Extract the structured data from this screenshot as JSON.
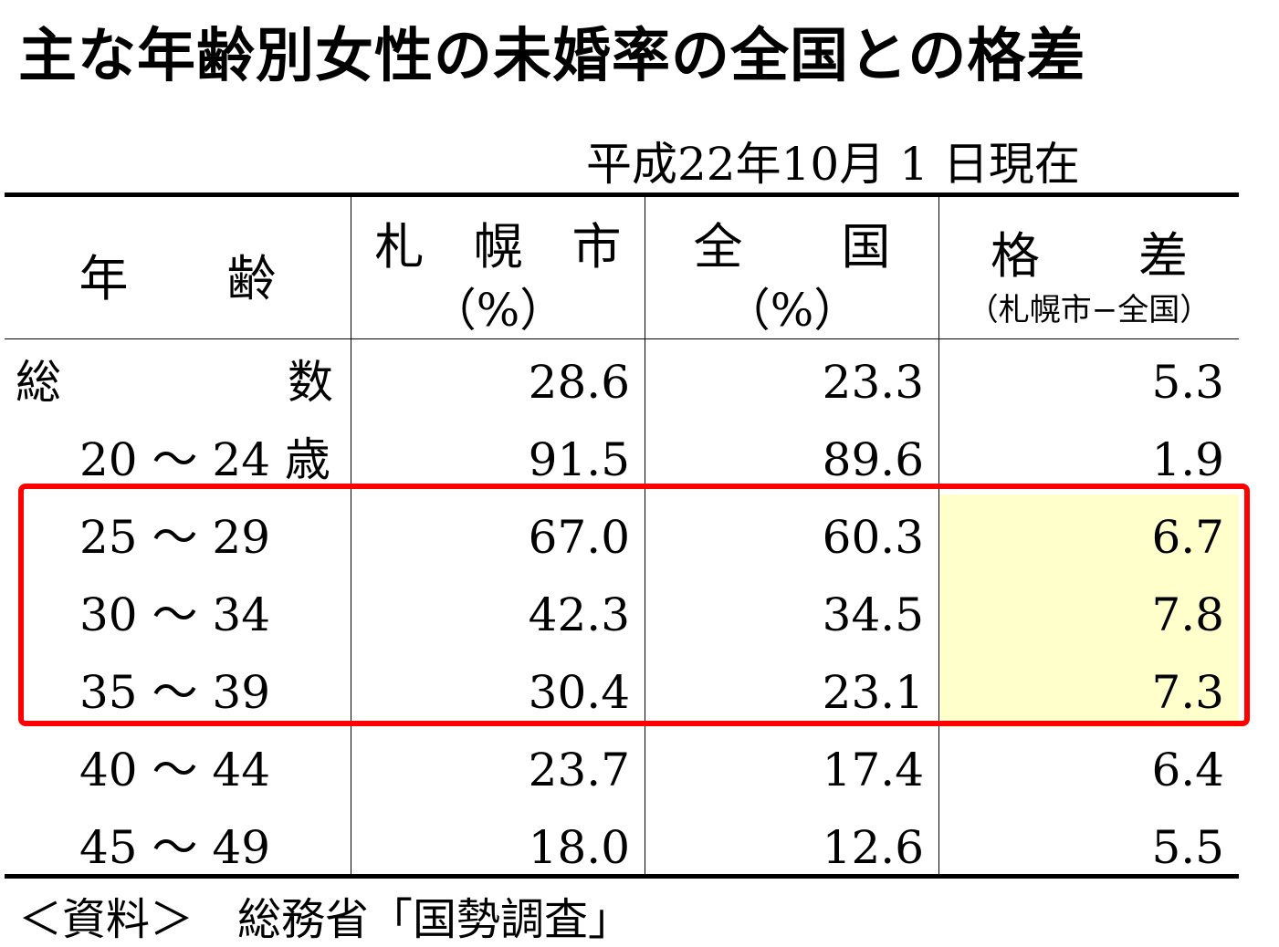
{
  "title": "主な年齢別女性の未婚率の全国との格差",
  "date": "平成22年10月 1 日現在",
  "headers": {
    "age": "年　　齢",
    "sapporo": "札　幌　市",
    "sapporo_unit": "（%）",
    "national": "全　　国",
    "national_unit": "（%）",
    "diff": "格　　差",
    "diff_sub": "（札幌市−全国）"
  },
  "source": "＜資料＞　総務省「国勢調査」",
  "highlight_color": "#ffffcc",
  "box_color": "#ff0000",
  "chart_data": {
    "type": "table",
    "columns": [
      "札幌市（%）",
      "全国（%）",
      "格差（札幌市−全国）"
    ],
    "total_label_left": "総",
    "total_label_right": "数",
    "rows": [
      {
        "age": "",
        "sapporo": "28.6",
        "national": "23.3",
        "diff": "5.3"
      },
      {
        "age": "20 〜 24 歳",
        "sapporo": "91.5",
        "national": "89.6",
        "diff": "1.9"
      },
      {
        "age": "25 〜 29",
        "sapporo": "67.0",
        "national": "60.3",
        "diff": "6.7"
      },
      {
        "age": "30 〜 34",
        "sapporo": "42.3",
        "national": "34.5",
        "diff": "7.8"
      },
      {
        "age": "35 〜 39",
        "sapporo": "30.4",
        "national": "23.1",
        "diff": "7.3"
      },
      {
        "age": "40 〜 44",
        "sapporo": "23.7",
        "national": "17.4",
        "diff": "6.4"
      },
      {
        "age": "45 〜 49",
        "sapporo": "18.0",
        "national": "12.6",
        "diff": "5.5"
      }
    ],
    "highlighted_rows": [
      2,
      3,
      4
    ]
  }
}
